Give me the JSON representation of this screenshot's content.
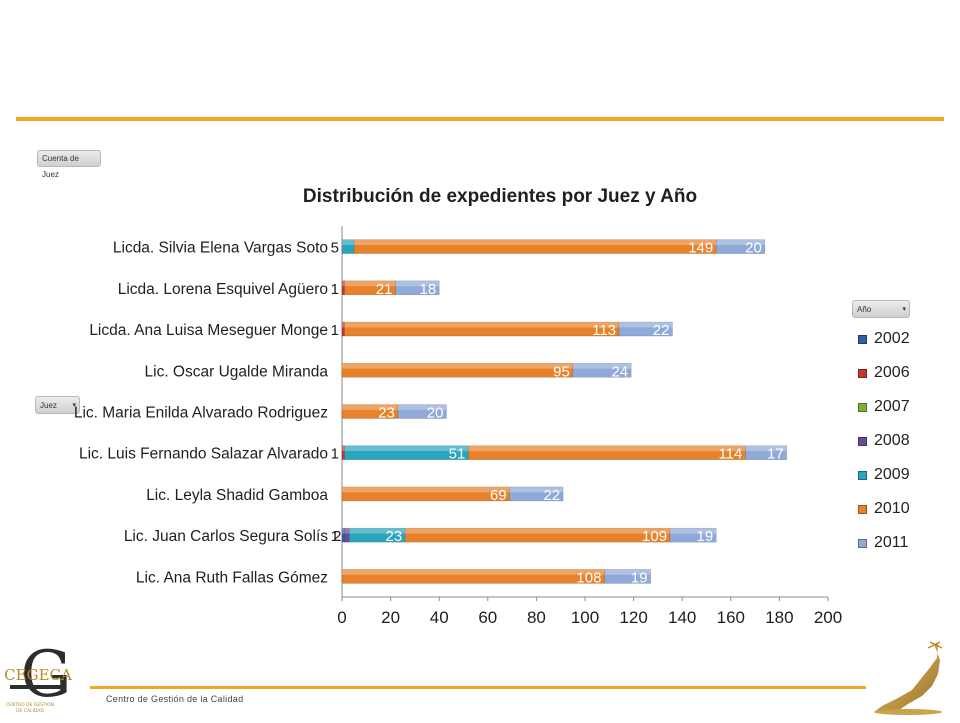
{
  "pivot": {
    "value_field": "Cuenta de Juez",
    "row_field": "Juez",
    "series_field": "Año"
  },
  "chart_data": {
    "type": "bar",
    "orientation": "horizontal",
    "stacked": true,
    "title": "Distribución de expedientes por Juez y Año",
    "categories": [
      "Licda. Silvia Elena Vargas Soto",
      "Licda. Lorena Esquivel Agüero",
      "Licda. Ana Luisa Meseguer Monge",
      "Lic. Oscar Ugalde Miranda",
      "Lic. Maria Enilda Alvarado Rodriguez",
      "Lic. Luis Fernando Salazar Alvarado",
      "Lic. Leyla Shadid Gamboa",
      "Lic. Juan Carlos Segura Solís",
      "Lic. Ana Ruth Fallas Gómez"
    ],
    "series": [
      {
        "name": "2002",
        "color": "#2e5fa8",
        "values": [
          0,
          0,
          0,
          0,
          0,
          0,
          0,
          1,
          0
        ]
      },
      {
        "name": "2006",
        "color": "#c0392b",
        "values": [
          0,
          1,
          1,
          0,
          0,
          1,
          0,
          0,
          0
        ]
      },
      {
        "name": "2007",
        "color": "#7fb13a",
        "values": [
          0,
          0,
          0,
          0,
          0,
          0,
          0,
          0,
          0
        ]
      },
      {
        "name": "2008",
        "color": "#6b4a9b",
        "values": [
          0,
          0,
          0,
          0,
          0,
          0,
          0,
          2,
          0
        ]
      },
      {
        "name": "2009",
        "color": "#2aa5be",
        "values": [
          5,
          0,
          0,
          0,
          0,
          51,
          0,
          23,
          0
        ]
      },
      {
        "name": "2010",
        "color": "#e8822a",
        "values": [
          149,
          21,
          113,
          95,
          23,
          114,
          69,
          109,
          108
        ]
      },
      {
        "name": "2011",
        "color": "#8fa9d8",
        "values": [
          20,
          18,
          22,
          24,
          20,
          17,
          22,
          19,
          19
        ]
      }
    ],
    "labels": [
      [
        "",
        "",
        "",
        "",
        "5",
        "149",
        "20"
      ],
      [
        "",
        "1",
        "",
        "",
        "",
        "21",
        "18"
      ],
      [
        "",
        "1",
        "",
        "",
        "",
        "113",
        "22"
      ],
      [
        "",
        "",
        "",
        "",
        "",
        "95",
        "24"
      ],
      [
        "",
        "",
        "",
        "",
        "",
        "23",
        "20"
      ],
      [
        "",
        "1",
        "",
        "",
        "51",
        "114",
        "17"
      ],
      [
        "",
        "",
        "",
        "",
        "",
        "69",
        "22"
      ],
      [
        "1",
        "",
        "",
        "2",
        "23",
        "109",
        "19"
      ],
      [
        "",
        "",
        "",
        "",
        "",
        "108",
        "19"
      ]
    ],
    "xlim": [
      0,
      200
    ],
    "xticks": [
      "0",
      "20",
      "40",
      "60",
      "80",
      "100",
      "120",
      "140",
      "160",
      "180",
      "200"
    ],
    "legend_position": "right"
  },
  "footer": {
    "organization": "Centro de Gestión de la Calidad",
    "logo_letter": "G",
    "logo_word": "CEGECA",
    "logo_caption_1": "CENTRO DE GESTIÓN",
    "logo_caption_2": "DE CALIDAD"
  }
}
